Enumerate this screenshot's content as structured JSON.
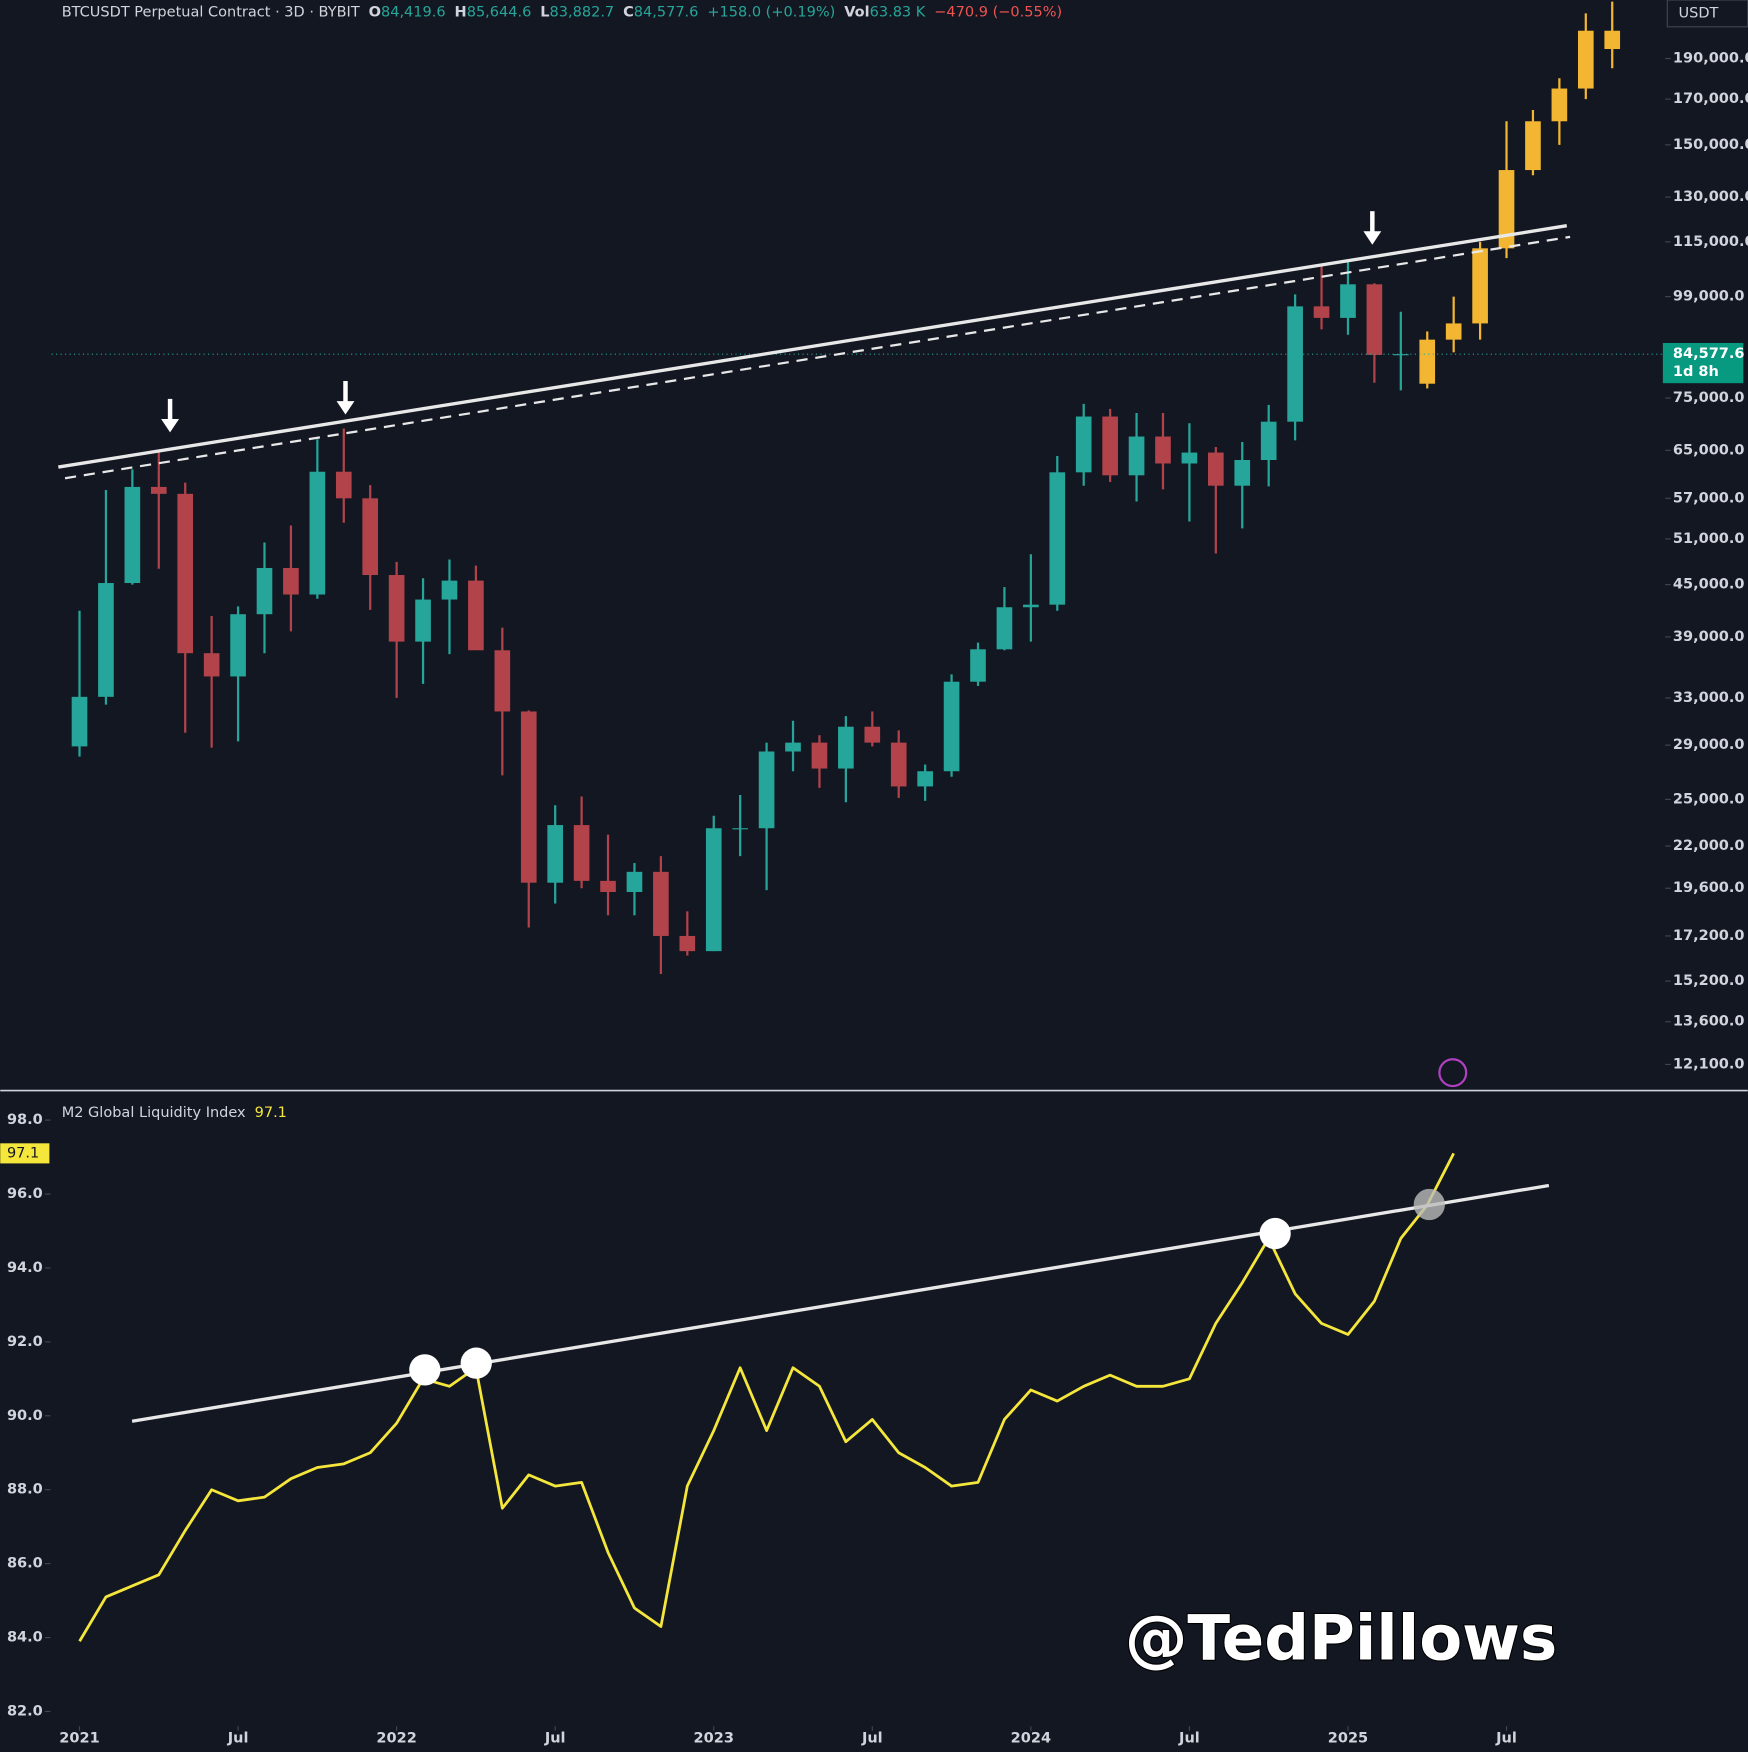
{
  "chart_data": [
    {
      "type": "candlestick",
      "title": "BTCUSDT Perpetual Contract · 3D · BYBIT",
      "header": [
        {
          "label": "O",
          "value": "84,419.6"
        },
        {
          "label": "H",
          "value": "85,644.6"
        },
        {
          "label": "L",
          "value": "83,882.7"
        },
        {
          "label": "C",
          "value": "84,577.6"
        }
      ],
      "change": "+158.0 (+0.19%)",
      "volume_label": "Vol",
      "volume": "63.83 K",
      "volume_change": "−470.9 (−0.55%)",
      "currency": "USDT",
      "last_price": {
        "value": 84577.6,
        "label": "84,577.6"
      },
      "countdown": "1d 8h",
      "log_scale": true,
      "up_color": "#26a69a",
      "down_color": "#b2434a",
      "xlim": [
        "2020-10",
        "2026-01"
      ],
      "ylim": [
        11300,
        223000
      ],
      "yticks": [
        {
          "value": 190000,
          "label": "190,000.0"
        },
        {
          "value": 170000,
          "label": "170,000.0"
        },
        {
          "value": 150000,
          "label": "150,000.0"
        },
        {
          "value": 130000,
          "label": "130,000.0"
        },
        {
          "value": 115000,
          "label": "115,000.0"
        },
        {
          "value": 99000,
          "label": "99,000.0"
        },
        {
          "value": 75000,
          "label": "75,000.0"
        },
        {
          "value": 65000,
          "label": "65,000.0"
        },
        {
          "value": 57000,
          "label": "57,000.0"
        },
        {
          "value": 51000,
          "label": "51,000.0"
        },
        {
          "value": 45000,
          "label": "45,000.0"
        },
        {
          "value": 39000,
          "label": "39,000.0"
        },
        {
          "value": 33000,
          "label": "33,000.0"
        },
        {
          "value": 29000,
          "label": "29,000.0"
        },
        {
          "value": 25000,
          "label": "25,000.0"
        },
        {
          "value": 22000,
          "label": "22,000.0"
        },
        {
          "value": 19600,
          "label": "19,600.0"
        },
        {
          "value": 17200,
          "label": "17,200.0"
        },
        {
          "value": 15200,
          "label": "15,200.0"
        },
        {
          "value": 13600,
          "label": "13,600.0"
        },
        {
          "value": 12100,
          "label": "12,100.0"
        }
      ],
      "x": [
        "2021-01",
        "2021-02",
        "2021-03",
        "2021-04",
        "2021-05",
        "2021-06",
        "2021-07",
        "2021-08",
        "2021-09",
        "2021-10",
        "2021-11",
        "2021-12",
        "2022-01",
        "2022-02",
        "2022-03",
        "2022-04",
        "2022-05",
        "2022-06",
        "2022-07",
        "2022-08",
        "2022-09",
        "2022-10",
        "2022-11",
        "2022-12",
        "2023-01",
        "2023-02",
        "2023-03",
        "2023-04",
        "2023-05",
        "2023-06",
        "2023-07",
        "2023-08",
        "2023-09",
        "2023-10",
        "2023-11",
        "2023-12",
        "2024-01",
        "2024-02",
        "2024-03",
        "2024-04",
        "2024-05",
        "2024-06",
        "2024-07",
        "2024-08",
        "2024-09",
        "2024-10",
        "2024-11",
        "2024-12",
        "2025-01",
        "2025-02",
        "2025-03"
      ],
      "open": [
        28900,
        33100,
        45200,
        58800,
        57700,
        37300,
        35000,
        41500,
        47100,
        43800,
        61300,
        57000,
        46200,
        38500,
        43200,
        45500,
        37600,
        31800,
        19900,
        23300,
        20000,
        19400,
        20500,
        17200,
        16500,
        23100,
        23100,
        28500,
        29200,
        27200,
        30500,
        29200,
        25900,
        27000,
        34500,
        37700,
        42300,
        42600,
        61200,
        71300,
        60700,
        67500,
        62700,
        64600,
        59000,
        63300,
        70300,
        96400,
        93400,
        102400,
        84400
      ],
      "high": [
        41900,
        58300,
        61700,
        64900,
        59500,
        41300,
        42400,
        50500,
        52900,
        67000,
        69000,
        59100,
        47900,
        45800,
        48200,
        47400,
        40000,
        31900,
        24600,
        25200,
        22700,
        21000,
        21400,
        18400,
        23900,
        25300,
        29200,
        31000,
        29800,
        31400,
        31800,
        30200,
        27500,
        35200,
        38400,
        44700,
        48900,
        64000,
        73800,
        72800,
        72000,
        72000,
        70000,
        65600,
        66500,
        73600,
        99600,
        108300,
        109400,
        102700,
        95000
      ],
      "low": [
        28100,
        32400,
        45000,
        47000,
        30000,
        28800,
        29300,
        37300,
        39600,
        43300,
        53300,
        42000,
        33000,
        34300,
        37200,
        37700,
        26700,
        17600,
        18800,
        19600,
        18200,
        18200,
        15500,
        16300,
        16500,
        21400,
        19500,
        27000,
        25800,
        24800,
        28900,
        25100,
        24900,
        26600,
        34100,
        37600,
        38500,
        41900,
        59000,
        59600,
        56500,
        58400,
        53500,
        49000,
        52500,
        58900,
        66800,
        90500,
        89200,
        78200,
        76600
      ],
      "close": [
        33100,
        45200,
        58800,
        57700,
        37300,
        35000,
        41500,
        47100,
        43800,
        61300,
        57000,
        46200,
        38500,
        43200,
        45500,
        37600,
        31800,
        19900,
        23300,
        20000,
        19400,
        20500,
        17200,
        16500,
        23100,
        23100,
        28500,
        29200,
        27200,
        30500,
        29200,
        25900,
        27000,
        34500,
        37700,
        42300,
        42600,
        61200,
        71300,
        60700,
        67500,
        62700,
        64600,
        59000,
        63300,
        70300,
        96400,
        93400,
        102400,
        84400,
        84577.6
      ],
      "projection": {
        "color": "#f2b632",
        "x": [
          "2025-04",
          "2025-05",
          "2025-06",
          "2025-07",
          "2025-08",
          "2025-09",
          "2025-10",
          "2025-11"
        ],
        "open": [
          78000,
          88000,
          92000,
          113000,
          140000,
          160000,
          175000,
          205000
        ],
        "high": [
          90000,
          99000,
          115000,
          160000,
          165000,
          180000,
          215000,
          222000
        ],
        "low": [
          77000,
          85000,
          88000,
          110000,
          138000,
          150000,
          170000,
          185000
        ],
        "close": [
          88000,
          92000,
          113000,
          140000,
          160000,
          175000,
          205000,
          195000
        ]
      }
    },
    {
      "type": "line",
      "title": "M2 Global Liquidity Index",
      "last_value": 97.1,
      "color": "#f5e63b",
      "xlim": [
        "2020-10",
        "2026-01"
      ],
      "ylim": [
        81.6,
        98.8
      ],
      "yticks": [
        {
          "value": 98,
          "label": "98.0"
        },
        {
          "value": 96,
          "label": "96.0"
        },
        {
          "value": 94,
          "label": "94.0"
        },
        {
          "value": 92,
          "label": "92.0"
        },
        {
          "value": 90,
          "label": "90.0"
        },
        {
          "value": 88,
          "label": "88.0"
        },
        {
          "value": 86,
          "label": "86.0"
        },
        {
          "value": 84,
          "label": "84.0"
        },
        {
          "value": 82,
          "label": "82.0"
        }
      ],
      "xticks": [
        {
          "value": "2021-01",
          "label": "2021"
        },
        {
          "value": "2021-07",
          "label": "Jul"
        },
        {
          "value": "2022-01",
          "label": "2022"
        },
        {
          "value": "2022-07",
          "label": "Jul"
        },
        {
          "value": "2023-01",
          "label": "2023"
        },
        {
          "value": "2023-07",
          "label": "Jul"
        },
        {
          "value": "2024-01",
          "label": "2024"
        },
        {
          "value": "2024-07",
          "label": "Jul"
        },
        {
          "value": "2025-01",
          "label": "2025"
        },
        {
          "value": "2025-07",
          "label": "Jul"
        }
      ],
      "x": [
        "2021-01",
        "2021-02",
        "2021-03",
        "2021-04",
        "2021-05",
        "2021-06",
        "2021-07",
        "2021-08",
        "2021-09",
        "2021-10",
        "2021-11",
        "2021-12",
        "2022-01",
        "2022-02",
        "2022-03",
        "2022-04",
        "2022-05",
        "2022-06",
        "2022-07",
        "2022-08",
        "2022-09",
        "2022-10",
        "2022-11",
        "2022-12",
        "2023-01",
        "2023-02",
        "2023-03",
        "2023-04",
        "2023-05",
        "2023-06",
        "2023-07",
        "2023-08",
        "2023-09",
        "2023-10",
        "2023-11",
        "2023-12",
        "2024-01",
        "2024-02",
        "2024-03",
        "2024-04",
        "2024-05",
        "2024-06",
        "2024-07",
        "2024-08",
        "2024-09",
        "2024-10",
        "2024-11",
        "2024-12",
        "2025-01",
        "2025-02",
        "2025-03",
        "2025-04",
        "2025-05"
      ],
      "values": [
        83.9,
        85.1,
        85.4,
        85.7,
        86.9,
        88.0,
        87.7,
        87.8,
        88.3,
        88.6,
        88.7,
        89.0,
        89.8,
        91.0,
        90.8,
        91.3,
        87.5,
        88.4,
        88.1,
        88.2,
        86.3,
        84.8,
        84.3,
        88.1,
        89.6,
        91.3,
        89.6,
        91.3,
        90.8,
        89.3,
        89.9,
        89.0,
        88.6,
        88.1,
        88.2,
        89.9,
        90.7,
        90.4,
        90.8,
        91.1,
        90.8,
        90.8,
        91.0,
        92.5,
        93.6,
        94.8,
        93.3,
        92.5,
        92.2,
        93.1,
        94.8,
        95.7,
        97.1
      ]
    }
  ],
  "watermark": "@TedPillows"
}
